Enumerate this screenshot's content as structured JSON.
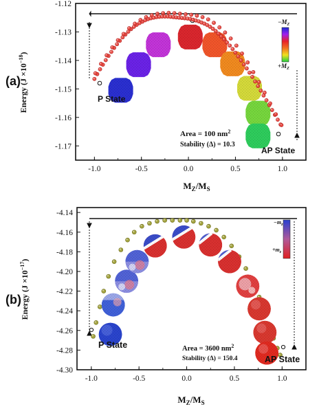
{
  "chart_data": [
    {
      "panel_label": "(a)",
      "type": "scatter",
      "x_ticks": [
        "-1.0",
        "-0.5",
        "0.0",
        "0.5",
        "1.0"
      ],
      "y_ticks": [
        "-1.12",
        "-1.13",
        "-1.14",
        "-1.15",
        "-1.16",
        "-1.17"
      ],
      "xlim": [
        -1.2,
        1.25
      ],
      "ylim": [
        -1.175,
        -1.12
      ],
      "xlabel_main": "M",
      "xlabel_sub1": "Z",
      "xlabel_slash": "/M",
      "xlabel_sub2": "S",
      "ylabel_main": "Energy (J ×10",
      "ylabel_exp": "−18",
      "ylabel_close": ")",
      "left_state": "P State",
      "right_state": "AP State",
      "area_text": "Area = 100 nm",
      "area_exp": "2",
      "stability_text": "Stability (Δ) = 10.3",
      "legend_top": "−M",
      "legend_top_sub": "Z",
      "legend_bottom": "+M",
      "legend_bottom_sub": "Z",
      "marker_color": "#e8433a",
      "series": [
        {
          "x": [
            -1.0,
            -0.97,
            -0.94,
            -0.91,
            -0.88,
            -0.85,
            -0.82,
            -0.79,
            -0.76,
            -0.73,
            -0.7,
            -0.67,
            -0.64,
            -0.61,
            -0.58,
            -0.55,
            -0.52,
            -0.49,
            -0.46,
            -0.43,
            -0.4,
            -0.37,
            -0.34,
            -0.31,
            -0.28,
            -0.25,
            -0.22,
            -0.19,
            -0.16,
            -0.13,
            -0.1,
            -0.07,
            -0.04,
            -0.01,
            0.02,
            0.05,
            0.08,
            0.11,
            0.14,
            0.17,
            0.2,
            0.23,
            0.26,
            0.29,
            0.32,
            0.35,
            0.38,
            0.41,
            0.44,
            0.47,
            0.5,
            0.53,
            0.56,
            0.59,
            0.62,
            0.65,
            0.68,
            0.71,
            0.74,
            0.77,
            0.8,
            0.83,
            0.86,
            0.89,
            0.92,
            0.95,
            0.98
          ],
          "y": [
            -1.1465,
            -1.1448,
            -1.1431,
            -1.1415,
            -1.1399,
            -1.1384,
            -1.137,
            -1.1356,
            -1.1343,
            -1.1331,
            -1.1319,
            -1.1309,
            -1.1299,
            -1.129,
            -1.1282,
            -1.1275,
            -1.1269,
            -1.1264,
            -1.1259,
            -1.1255,
            -1.1252,
            -1.125,
            -1.1248,
            -1.1247,
            -1.1246,
            -1.1246,
            -1.1246,
            -1.1247,
            -1.1248,
            -1.1249,
            -1.125,
            -1.1251,
            -1.1252,
            -1.1253,
            -1.1255,
            -1.1257,
            -1.126,
            -1.1263,
            -1.1267,
            -1.1271,
            -1.1276,
            -1.1282,
            -1.1289,
            -1.1297,
            -1.1306,
            -1.1316,
            -1.1326,
            -1.1337,
            -1.1348,
            -1.136,
            -1.1373,
            -1.1386,
            -1.14,
            -1.1414,
            -1.1428,
            -1.1443,
            -1.1458,
            -1.1474,
            -1.149,
            -1.1506,
            -1.1523,
            -1.154,
            -1.1557,
            -1.1574,
            -1.1591,
            -1.1608,
            -1.1625
          ]
        },
        {
          "x": [
            -0.99,
            -0.93,
            -0.87,
            -0.81,
            -0.75,
            -0.69,
            -0.63,
            -0.57,
            -0.51,
            -0.45,
            -0.39,
            -0.33,
            -0.27,
            -0.21,
            -0.15,
            -0.09,
            -0.03,
            0.03,
            0.09,
            0.15,
            0.21,
            0.27,
            0.33,
            0.39,
            0.45,
            0.51,
            0.57,
            0.63,
            0.69,
            0.75,
            0.81,
            0.87,
            0.93,
            0.99
          ],
          "y": [
            -1.1445,
            -1.1412,
            -1.1382,
            -1.1354,
            -1.1329,
            -1.1307,
            -1.1287,
            -1.1271,
            -1.1258,
            -1.1248,
            -1.1241,
            -1.1236,
            -1.1234,
            -1.1233,
            -1.1234,
            -1.1236,
            -1.1238,
            -1.124,
            -1.1243,
            -1.1248,
            -1.1256,
            -1.1268,
            -1.1284,
            -1.1302,
            -1.1323,
            -1.1348,
            -1.1376,
            -1.1407,
            -1.1441,
            -1.1476,
            -1.1513,
            -1.1551,
            -1.1589,
            -1.1627
          ]
        }
      ],
      "domains": [
        {
          "x": -0.72,
          "y": -1.1505,
          "color": "#2a2fd0"
        },
        {
          "x": -0.53,
          "y": -1.1415,
          "color": "#6a22e6"
        },
        {
          "x": -0.32,
          "y": -1.1345,
          "color": "#c234d8"
        },
        {
          "x": 0.02,
          "y": -1.1318,
          "color": "#d9262d"
        },
        {
          "x": 0.28,
          "y": -1.1345,
          "color": "#f0552a"
        },
        {
          "x": 0.47,
          "y": -1.1412,
          "color": "#f08a1f"
        },
        {
          "x": 0.65,
          "y": -1.1498,
          "color": "#d4d93a"
        },
        {
          "x": 0.74,
          "y": -1.1585,
          "color": "#76d63d"
        },
        {
          "x": 0.74,
          "y": -1.1665,
          "color": "#2ecc5c"
        }
      ]
    },
    {
      "panel_label": "(b)",
      "type": "scatter",
      "x_ticks": [
        "-1.0",
        "-0.5",
        "0.0",
        "0.5",
        "1.0"
      ],
      "y_ticks": [
        "-4.14",
        "-4.16",
        "-4.18",
        "-4.20",
        "-4.22",
        "-4.24",
        "-4.26",
        "-4.28",
        "-4.30"
      ],
      "xlim": [
        -1.15,
        1.25
      ],
      "ylim": [
        -4.3,
        -4.135
      ],
      "xlabel_main": "M",
      "xlabel_sub1": "Z",
      "xlabel_slash": "/M",
      "xlabel_sub2": "S",
      "ylabel_main": "Energy (J ×10",
      "ylabel_exp": "−17",
      "ylabel_close": ")",
      "left_state": "P State",
      "right_state": "AP State",
      "area_text": "Area = 3600 nm",
      "area_exp": "2",
      "stability_text": "Stability (Δ) = 150.4",
      "legend_top": "−m",
      "legend_top_sub": "z",
      "legend_bottom": "+m",
      "legend_bottom_sub": "z",
      "marker_color": "#9a9a2c",
      "series": [
        {
          "x": [
            -0.98,
            -0.95,
            -0.91,
            -0.87,
            -0.82,
            -0.76,
            -0.69,
            -0.62,
            -0.55,
            -0.47,
            -0.39,
            -0.31,
            -0.23,
            -0.15,
            -0.07,
            0.0,
            0.07,
            0.15,
            0.23,
            0.31,
            0.39,
            0.47,
            0.55,
            0.62,
            0.69,
            0.76,
            0.82,
            0.87,
            0.91,
            0.95,
            0.98
          ],
          "y": [
            -4.266,
            -4.252,
            -4.236,
            -4.22,
            -4.205,
            -4.19,
            -4.178,
            -4.168,
            -4.16,
            -4.154,
            -4.151,
            -4.149,
            -4.148,
            -4.148,
            -4.148,
            -4.148,
            -4.149,
            -4.151,
            -4.154,
            -4.158,
            -4.165,
            -4.174,
            -4.185,
            -4.197,
            -4.211,
            -4.226,
            -4.242,
            -4.256,
            -4.268,
            -4.278,
            -4.285
          ]
        }
      ],
      "domains": [
        {
          "x": -0.8,
          "y": -4.264,
          "pattern": "blue",
          "color": "#2646c8"
        },
        {
          "x": -0.77,
          "y": -4.234,
          "pattern": "blue-mixed",
          "color": "#3a56d4"
        },
        {
          "x": -0.63,
          "y": -4.21,
          "pattern": "mixed",
          "color": "#6a6ad8"
        },
        {
          "x": -0.52,
          "y": -4.19,
          "pattern": "mixed",
          "color": "#7a7ae0"
        },
        {
          "x": -0.33,
          "y": -4.174,
          "pattern": "split",
          "color": "#c94060"
        },
        {
          "x": -0.03,
          "y": -4.165,
          "pattern": "split",
          "color": "#c94060"
        },
        {
          "x": 0.25,
          "y": -4.173,
          "pattern": "split-red",
          "color": "#d8382f"
        },
        {
          "x": 0.45,
          "y": -4.19,
          "pattern": "split-red",
          "color": "#d8382f"
        },
        {
          "x": 0.64,
          "y": -4.215,
          "pattern": "red-mixed",
          "color": "#d8382f"
        },
        {
          "x": 0.76,
          "y": -4.238,
          "pattern": "red",
          "color": "#d8382f"
        },
        {
          "x": 0.82,
          "y": -4.262,
          "pattern": "red",
          "color": "#d8382f"
        },
        {
          "x": 0.84,
          "y": -4.283,
          "pattern": "red",
          "color": "#e02a20"
        }
      ]
    }
  ]
}
